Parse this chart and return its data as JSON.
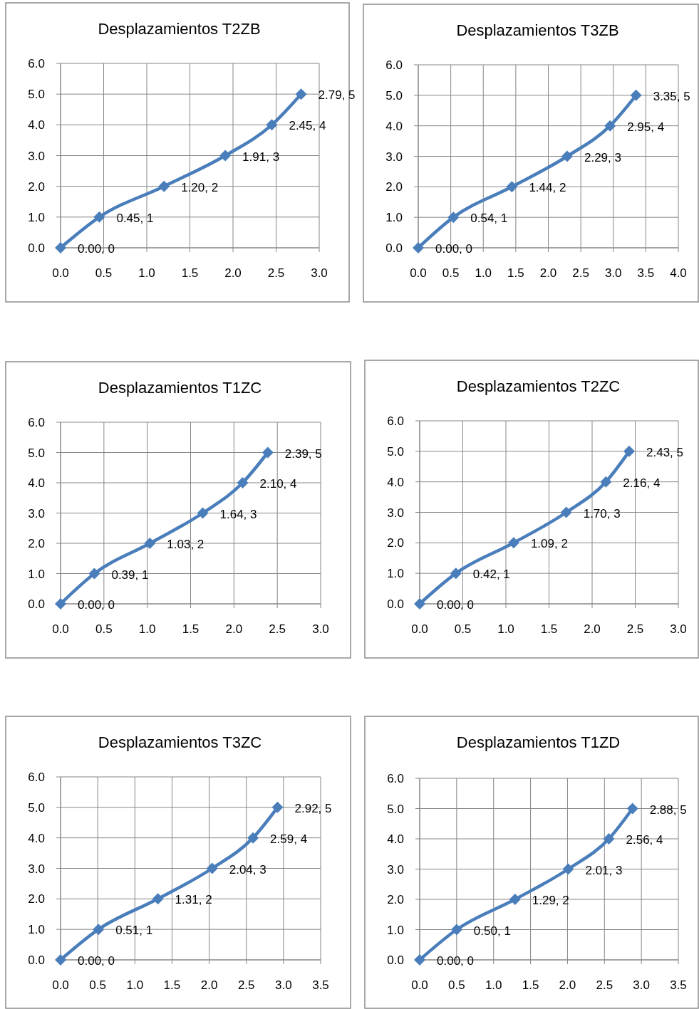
{
  "chart_data": [
    {
      "type": "line",
      "title": "Desplazamientos  T2ZB",
      "x": [
        0.0,
        0.45,
        1.2,
        1.91,
        2.45,
        2.79
      ],
      "series": [
        {
          "color": "#4a7ebb",
          "values": [
            0,
            1,
            2,
            3,
            4,
            5
          ],
          "value_labels": [
            "0.00, 0",
            "0.45, 1",
            "1.20, 2",
            "1.91, 3",
            "2.45, 4",
            "2.79, 5"
          ]
        }
      ],
      "xlim": [
        0,
        3
      ],
      "ylim": [
        0,
        6
      ],
      "xticks": [
        {
          "value": 0,
          "label": "0.0"
        },
        {
          "value": 0.5,
          "label": "0.5"
        },
        {
          "value": 1,
          "label": "1.0"
        },
        {
          "value": 1.5,
          "label": "1.5"
        },
        {
          "value": 2,
          "label": "2.0"
        },
        {
          "value": 2.5,
          "label": "2.5"
        },
        {
          "value": 3,
          "label": "3.0"
        }
      ],
      "yticks": [
        {
          "value": 0,
          "label": "0.0"
        },
        {
          "value": 1,
          "label": "1.0"
        },
        {
          "value": 2,
          "label": "2.0"
        },
        {
          "value": 3,
          "label": "3.0"
        },
        {
          "value": 4,
          "label": "4.0"
        },
        {
          "value": 5,
          "label": "5.0"
        },
        {
          "value": 6,
          "label": "6.0"
        }
      ],
      "grid": true,
      "marker": "diamond"
    },
    {
      "type": "line",
      "title": "Desplazamientos T3ZB",
      "x": [
        0.0,
        0.54,
        1.44,
        2.29,
        2.95,
        3.35
      ],
      "series": [
        {
          "color": "#4a7ebb",
          "values": [
            0,
            1,
            2,
            3,
            4,
            5
          ],
          "value_labels": [
            "0.00, 0",
            "0.54, 1",
            "1.44, 2",
            "2.29, 3",
            "2.95, 4",
            "3.35, 5"
          ]
        }
      ],
      "xlim": [
        0,
        4
      ],
      "ylim": [
        0,
        6
      ],
      "xticks": [
        {
          "value": 0,
          "label": "0.0"
        },
        {
          "value": 0.5,
          "label": "0.5"
        },
        {
          "value": 1,
          "label": "1.0"
        },
        {
          "value": 1.5,
          "label": "1.5"
        },
        {
          "value": 2,
          "label": "2.0"
        },
        {
          "value": 2.5,
          "label": "2.5"
        },
        {
          "value": 3,
          "label": "3.0"
        },
        {
          "value": 3.5,
          "label": "3.5"
        },
        {
          "value": 4,
          "label": "4.0"
        }
      ],
      "yticks": [
        {
          "value": 0,
          "label": "0.0"
        },
        {
          "value": 1,
          "label": "1.0"
        },
        {
          "value": 2,
          "label": "2.0"
        },
        {
          "value": 3,
          "label": "3.0"
        },
        {
          "value": 4,
          "label": "4.0"
        },
        {
          "value": 5,
          "label": "5.0"
        },
        {
          "value": 6,
          "label": "6.0"
        }
      ],
      "grid": true,
      "marker": "diamond"
    },
    {
      "type": "line",
      "title": "Desplazamientos T1ZC",
      "x": [
        0.0,
        0.39,
        1.03,
        1.64,
        2.1,
        2.39
      ],
      "series": [
        {
          "color": "#4a7ebb",
          "values": [
            0,
            1,
            2,
            3,
            4,
            5
          ],
          "value_labels": [
            "0.00, 0",
            "0.39, 1",
            "1.03, 2",
            "1.64, 3",
            "2.10, 4",
            "2.39, 5"
          ]
        }
      ],
      "xlim": [
        0,
        3
      ],
      "ylim": [
        0,
        6
      ],
      "xticks": [
        {
          "value": 0,
          "label": "0.0"
        },
        {
          "value": 0.5,
          "label": "0.5"
        },
        {
          "value": 1,
          "label": "1.0"
        },
        {
          "value": 1.5,
          "label": "1.5"
        },
        {
          "value": 2,
          "label": "2.0"
        },
        {
          "value": 2.5,
          "label": "2.5"
        },
        {
          "value": 3,
          "label": "3.0"
        }
      ],
      "yticks": [
        {
          "value": 0,
          "label": "0.0"
        },
        {
          "value": 1,
          "label": "1.0"
        },
        {
          "value": 2,
          "label": "2.0"
        },
        {
          "value": 3,
          "label": "3.0"
        },
        {
          "value": 4,
          "label": "4.0"
        },
        {
          "value": 5,
          "label": "5.0"
        },
        {
          "value": 6,
          "label": "6.0"
        }
      ],
      "grid": true,
      "marker": "diamond"
    },
    {
      "type": "line",
      "title": "Desplazamientos T2ZC",
      "x": [
        0.0,
        0.42,
        1.09,
        1.7,
        2.16,
        2.43
      ],
      "series": [
        {
          "color": "#4a7ebb",
          "values": [
            0,
            1,
            2,
            3,
            4,
            5
          ],
          "value_labels": [
            "0.00, 0",
            "0.42, 1",
            "1.09, 2",
            "1.70, 3",
            "2.16, 4",
            "2.43, 5"
          ]
        }
      ],
      "xlim": [
        0,
        3
      ],
      "ylim": [
        0,
        6
      ],
      "xticks": [
        {
          "value": 0,
          "label": "0.0"
        },
        {
          "value": 0.5,
          "label": "0.5"
        },
        {
          "value": 1,
          "label": "1.0"
        },
        {
          "value": 1.5,
          "label": "1.5"
        },
        {
          "value": 2,
          "label": "2.0"
        },
        {
          "value": 2.5,
          "label": "2.5"
        },
        {
          "value": 3,
          "label": "3.0"
        }
      ],
      "yticks": [
        {
          "value": 0,
          "label": "0.0"
        },
        {
          "value": 1,
          "label": "1.0"
        },
        {
          "value": 2,
          "label": "2.0"
        },
        {
          "value": 3,
          "label": "3.0"
        },
        {
          "value": 4,
          "label": "4.0"
        },
        {
          "value": 5,
          "label": "5.0"
        },
        {
          "value": 6,
          "label": "6.0"
        }
      ],
      "grid": true,
      "marker": "diamond"
    },
    {
      "type": "line",
      "title": "Desplazamientos T3ZC",
      "x": [
        0.0,
        0.51,
        1.31,
        2.04,
        2.59,
        2.92
      ],
      "series": [
        {
          "color": "#4a7ebb",
          "values": [
            0,
            1,
            2,
            3,
            4,
            5
          ],
          "value_labels": [
            "0.00, 0",
            "0.51, 1",
            "1.31, 2",
            "2.04, 3",
            "2.59, 4",
            "2.92, 5"
          ]
        }
      ],
      "xlim": [
        0,
        3.5
      ],
      "ylim": [
        0,
        6
      ],
      "xticks": [
        {
          "value": 0,
          "label": "0.0"
        },
        {
          "value": 0.5,
          "label": "0.5"
        },
        {
          "value": 1,
          "label": "1.0"
        },
        {
          "value": 1.5,
          "label": "1.5"
        },
        {
          "value": 2,
          "label": "2.0"
        },
        {
          "value": 2.5,
          "label": "2.5"
        },
        {
          "value": 3,
          "label": "3.0"
        },
        {
          "value": 3.5,
          "label": "3.5"
        }
      ],
      "yticks": [
        {
          "value": 0,
          "label": "0.0"
        },
        {
          "value": 1,
          "label": "1.0"
        },
        {
          "value": 2,
          "label": "2.0"
        },
        {
          "value": 3,
          "label": "3.0"
        },
        {
          "value": 4,
          "label": "4.0"
        },
        {
          "value": 5,
          "label": "5.0"
        },
        {
          "value": 6,
          "label": "6.0"
        }
      ],
      "grid": true,
      "marker": "diamond"
    },
    {
      "type": "line",
      "title": "Desplazamientos T1ZD",
      "x": [
        0.0,
        0.5,
        1.29,
        2.01,
        2.56,
        2.88
      ],
      "series": [
        {
          "color": "#4a7ebb",
          "values": [
            0,
            1,
            2,
            3,
            4,
            5
          ],
          "value_labels": [
            "0.00, 0",
            "0.50, 1",
            "1.29, 2",
            "2.01, 3",
            "2.56, 4",
            "2.88, 5"
          ]
        }
      ],
      "xlim": [
        0,
        3.5
      ],
      "ylim": [
        0,
        6
      ],
      "xticks": [
        {
          "value": 0,
          "label": "0.0"
        },
        {
          "value": 0.5,
          "label": "0.5"
        },
        {
          "value": 1,
          "label": "1.0"
        },
        {
          "value": 1.5,
          "label": "1.5"
        },
        {
          "value": 2,
          "label": "2.0"
        },
        {
          "value": 2.5,
          "label": "2.5"
        },
        {
          "value": 3,
          "label": "3.0"
        },
        {
          "value": 3.5,
          "label": "3.5"
        }
      ],
      "yticks": [
        {
          "value": 0,
          "label": "0.0"
        },
        {
          "value": 1,
          "label": "1.0"
        },
        {
          "value": 2,
          "label": "2.0"
        },
        {
          "value": 3,
          "label": "3.0"
        },
        {
          "value": 4,
          "label": "4.0"
        },
        {
          "value": 5,
          "label": "5.0"
        },
        {
          "value": 6,
          "label": "6.0"
        }
      ],
      "grid": true,
      "marker": "diamond"
    }
  ]
}
